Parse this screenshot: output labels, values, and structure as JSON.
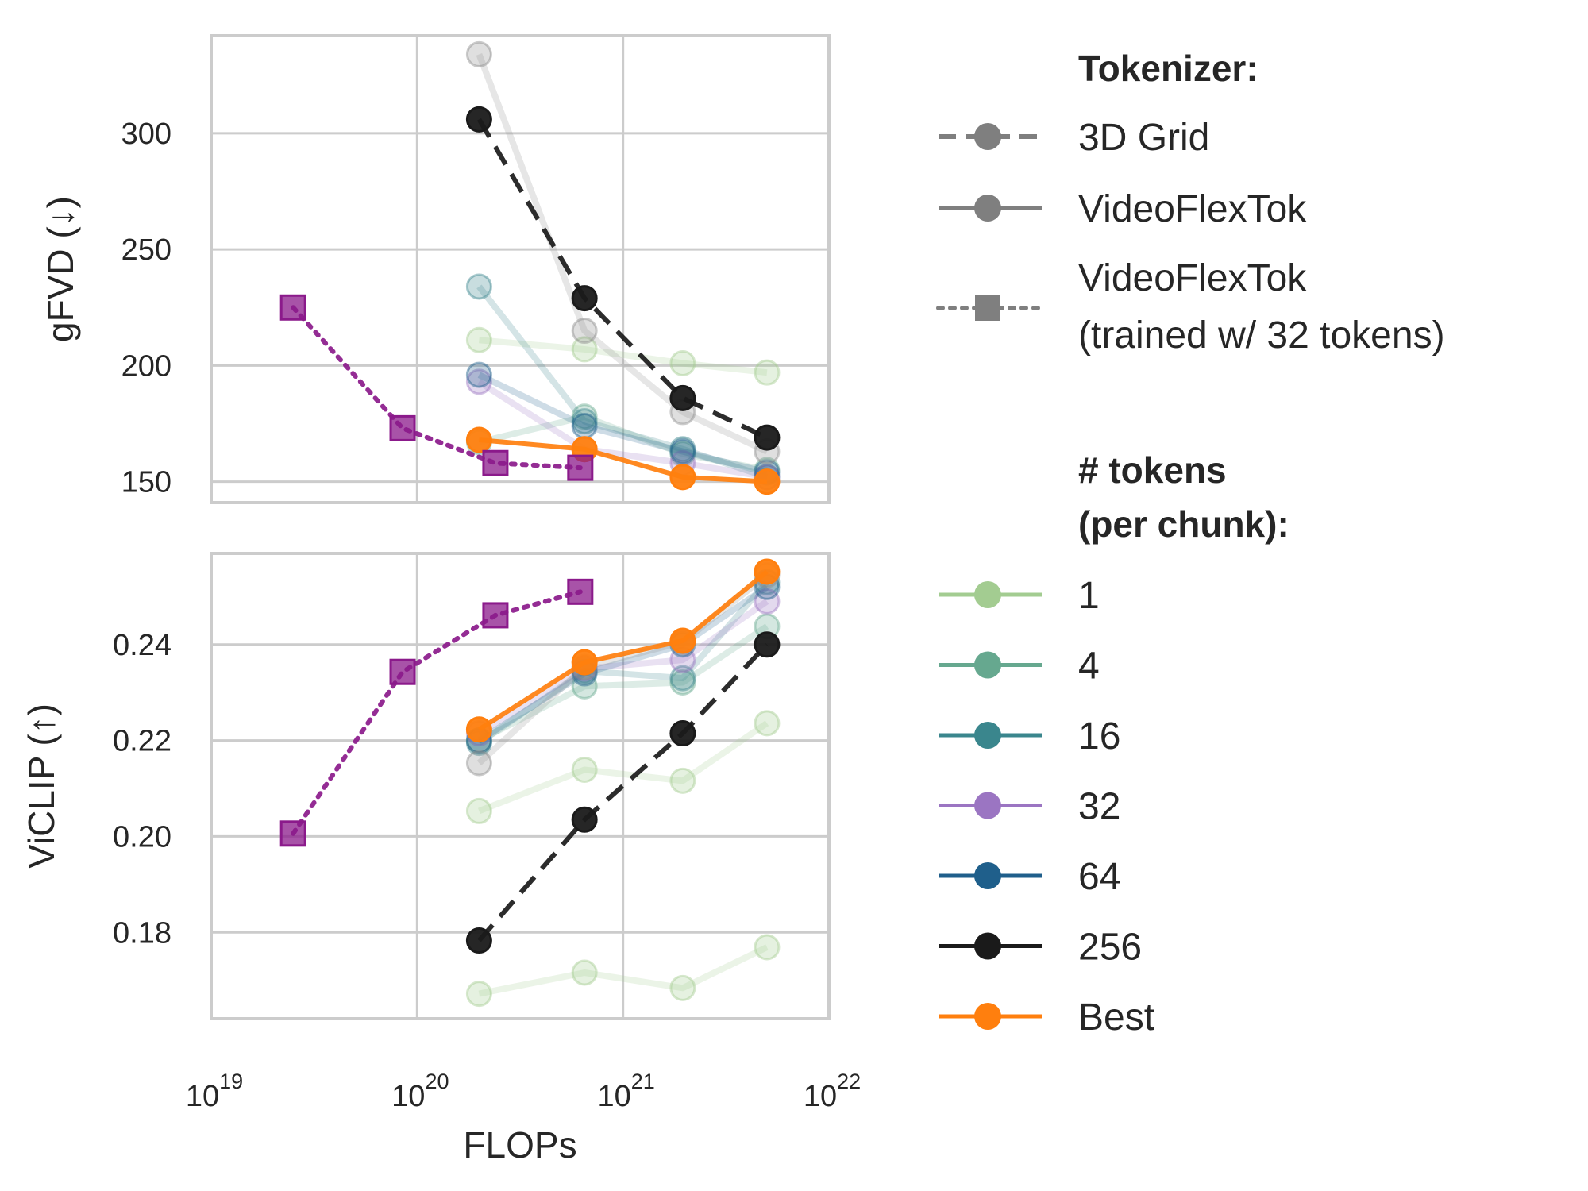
{
  "chart_data": {
    "type": "line",
    "x_scale": "log",
    "x_label": "FLOPs",
    "x_ticks": [
      {
        "value": 1e+19,
        "base": "10",
        "exp": "19"
      },
      {
        "value": 1e+20,
        "base": "10",
        "exp": "20"
      },
      {
        "value": 1e+21,
        "base": "10",
        "exp": "21"
      },
      {
        "value": 1e+22,
        "base": "10",
        "exp": "22"
      }
    ],
    "x_range": [
      1e+19,
      1e+22
    ],
    "grid": true,
    "legend_position": "right",
    "panels": [
      {
        "id": "gfvd",
        "ylabel": "gFVD (↓)",
        "ylim": [
          141,
          342
        ],
        "yticks": [
          150,
          200,
          250,
          300
        ],
        "ytick_labels": [
          "150",
          "200",
          "250",
          "300"
        ],
        "series": [
          {
            "name": "1",
            "tokenizer": "VideoFlexTok",
            "faded": true,
            "color": "#a3cc91",
            "x": [
              2e+20,
              6.5e+20,
              1.95e+21,
              5e+21
            ],
            "y": [
              211,
              207,
              201,
              197
            ]
          },
          {
            "name": "4",
            "tokenizer": "VideoFlexTok",
            "faded": true,
            "color": "#66a88f",
            "x": [
              2e+20,
              6.5e+20,
              1.95e+21,
              5e+21
            ],
            "y": [
              167,
              178,
              162,
              155
            ]
          },
          {
            "name": "16",
            "tokenizer": "VideoFlexTok",
            "faded": true,
            "color": "#3a868d",
            "x": [
              2e+20,
              6.5e+20,
              1.95e+21,
              5e+21
            ],
            "y": [
              234,
              176,
              164,
              152
            ]
          },
          {
            "name": "32",
            "tokenizer": "VideoFlexTok",
            "faded": true,
            "color": "#9b75c2",
            "x": [
              2e+20,
              6.5e+20,
              1.95e+21,
              5e+21
            ],
            "y": [
              193,
              164,
              158,
              152
            ]
          },
          {
            "name": "64",
            "tokenizer": "VideoFlexTok",
            "faded": true,
            "color": "#1f5f8b",
            "x": [
              2e+20,
              6.5e+20,
              1.95e+21,
              5e+21
            ],
            "y": [
              196,
              174,
              163,
              154
            ]
          },
          {
            "name": "256",
            "tokenizer": "VideoFlexTok",
            "faded": true,
            "color": "#8c8c8c",
            "x": [
              2e+20,
              6.5e+20,
              1.95e+21,
              5e+21
            ],
            "y": [
              334,
              215,
              180,
              163
            ]
          },
          {
            "name": "256",
            "tokenizer": "3D Grid",
            "faded": false,
            "color": "#1a1a1a",
            "x": [
              2e+20,
              6.5e+20,
              1.95e+21,
              5e+21
            ],
            "y": [
              306,
              229,
              186,
              169
            ]
          },
          {
            "name": "Best",
            "tokenizer": "VideoFlexTok",
            "faded": false,
            "color": "#ff7f0e",
            "x": [
              2e+20,
              6.5e+20,
              1.95e+21,
              5e+21
            ],
            "y": [
              168,
              164,
              152,
              150
            ]
          },
          {
            "name": "32",
            "tokenizer": "VideoFlexTok (trained w/ 32 tokens)",
            "faded": false,
            "color": "#8b1a8b",
            "x": [
              2.5e+19,
              8.5e+19,
              2.4e+20,
              6.2e+20
            ],
            "y": [
              225,
              173,
              158,
              156
            ]
          }
        ]
      },
      {
        "id": "viclip",
        "ylabel": "ViCLIP (↑)",
        "ylim": [
          0.162,
          0.259
        ],
        "yticks": [
          0.18,
          0.2,
          0.22,
          0.24
        ],
        "ytick_labels": [
          "0.18",
          "0.20",
          "0.22",
          "0.24"
        ],
        "series": [
          {
            "name": "1",
            "tokenizer": "VideoFlexTok",
            "faded": true,
            "color": "#a3cc91",
            "x": [
              2e+20,
              6.5e+20,
              1.95e+21,
              5e+21
            ],
            "y": [
              0.1672,
              0.1716,
              0.1684,
              0.1769
            ]
          },
          {
            "name": "1",
            "tokenizer": "VideoFlexTok",
            "faded": true,
            "color": "#a3cc91",
            "x": [
              2e+20,
              6.5e+20,
              1.95e+21,
              5e+21
            ],
            "y": [
              0.2053,
              0.2139,
              0.2116,
              0.2236
            ]
          },
          {
            "name": "4",
            "tokenizer": "VideoFlexTok",
            "faded": true,
            "color": "#66a88f",
            "x": [
              2e+20,
              6.5e+20,
              1.95e+21,
              5e+21
            ],
            "y": [
              0.22,
              0.2313,
              0.2321,
              0.2438
            ]
          },
          {
            "name": "16",
            "tokenizer": "VideoFlexTok",
            "faded": true,
            "color": "#3a868d",
            "x": [
              2e+20,
              6.5e+20,
              1.95e+21,
              5e+21
            ],
            "y": [
              0.2195,
              0.2345,
              0.233,
              0.253
            ]
          },
          {
            "name": "32",
            "tokenizer": "VideoFlexTok",
            "faded": true,
            "color": "#9b75c2",
            "x": [
              2e+20,
              6.5e+20,
              1.95e+21,
              5e+21
            ],
            "y": [
              0.2215,
              0.235,
              0.2368,
              0.249
            ]
          },
          {
            "name": "64",
            "tokenizer": "VideoFlexTok",
            "faded": true,
            "color": "#1f5f8b",
            "x": [
              2e+20,
              6.5e+20,
              1.95e+21,
              5e+21
            ],
            "y": [
              0.22,
              0.234,
              0.24,
              0.252
            ]
          },
          {
            "name": "256",
            "tokenizer": "VideoFlexTok",
            "faded": true,
            "color": "#8c8c8c",
            "x": [
              2e+20,
              6.5e+20,
              1.95e+21,
              5e+21
            ],
            "y": [
              0.2153,
              0.2353,
              0.2405,
              0.2545
            ]
          },
          {
            "name": "256",
            "tokenizer": "3D Grid",
            "faded": false,
            "color": "#1a1a1a",
            "x": [
              2e+20,
              6.5e+20,
              1.95e+21,
              5e+21
            ],
            "y": [
              0.1783,
              0.2035,
              0.2215,
              0.24
            ]
          },
          {
            "name": "Best",
            "tokenizer": "VideoFlexTok",
            "faded": false,
            "color": "#ff7f0e",
            "x": [
              2e+20,
              6.5e+20,
              1.95e+21,
              5e+21
            ],
            "y": [
              0.2223,
              0.2363,
              0.2408,
              0.2552
            ]
          },
          {
            "name": "32",
            "tokenizer": "VideoFlexTok (trained w/ 32 tokens)",
            "faded": false,
            "color": "#8b1a8b",
            "x": [
              2.5e+19,
              8.5e+19,
              2.4e+20,
              6.2e+20
            ],
            "y": [
              0.2006,
              0.2343,
              0.2461,
              0.251
            ]
          }
        ]
      }
    ]
  },
  "legend": {
    "tokenizer_title": "Tokenizer:",
    "tokenizer_items": [
      {
        "label": "3D Grid",
        "style": "dashed",
        "marker": "circle",
        "color": "#7f7f7f"
      },
      {
        "label": "VideoFlexTok",
        "style": "solid",
        "marker": "circle",
        "color": "#7f7f7f"
      },
      {
        "label_lines": [
          "VideoFlexTok",
          "(trained w/ 32 tokens)"
        ],
        "style": "dotted",
        "marker": "square",
        "color": "#7f7f7f"
      }
    ],
    "tokens_title_lines": [
      "# tokens",
      "(per chunk):"
    ],
    "tokens_items": [
      {
        "label": "1",
        "color": "#a3cc91"
      },
      {
        "label": "4",
        "color": "#66a88f"
      },
      {
        "label": "16",
        "color": "#3a868d"
      },
      {
        "label": "32",
        "color": "#9b75c2"
      },
      {
        "label": "64",
        "color": "#1f5f8b"
      },
      {
        "label": "256",
        "color": "#1a1a1a"
      },
      {
        "label": "Best",
        "color": "#ff7f0e"
      }
    ]
  }
}
